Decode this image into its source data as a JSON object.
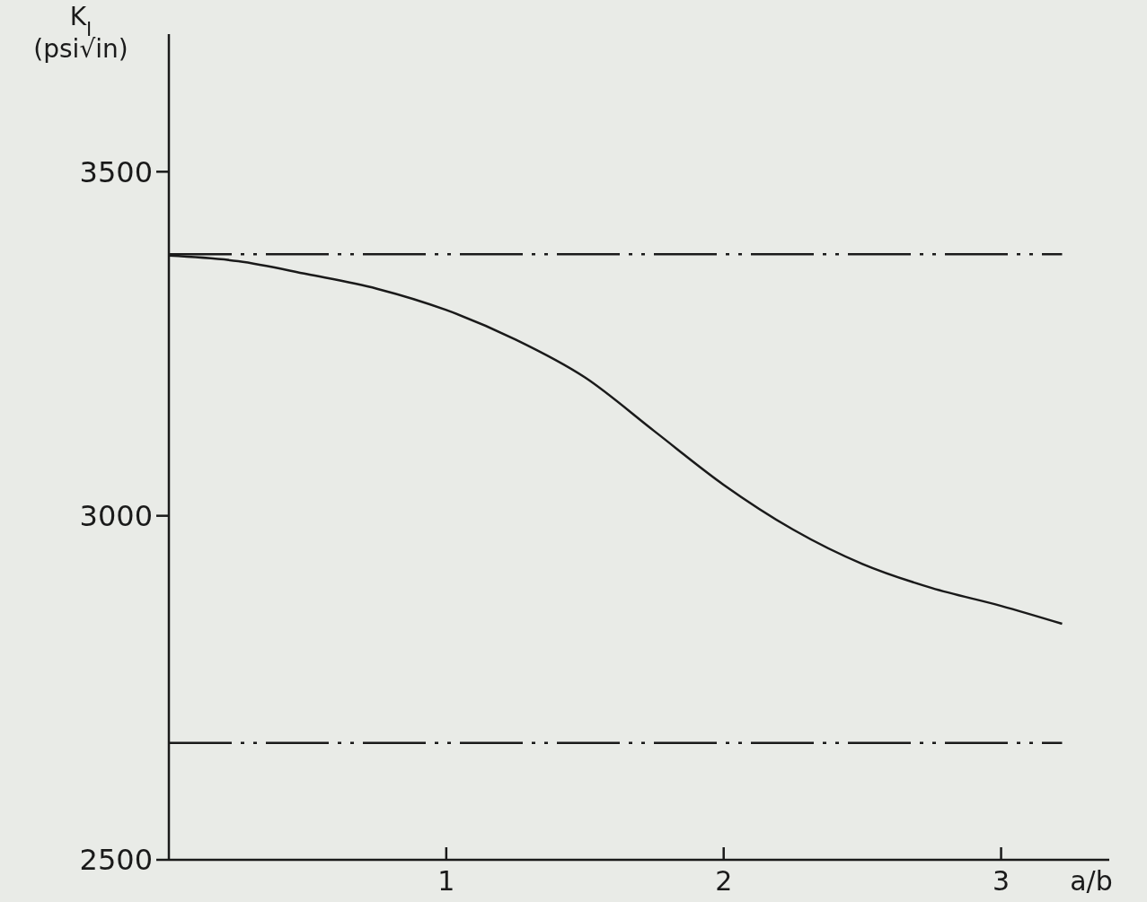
{
  "chart_data": {
    "type": "line",
    "xlabel": "a/b",
    "ylabel": "K$_{I}$ (psi√in)",
    "xlim": [
      0,
      3.39
    ],
    "xticks": [
      1,
      2,
      3
    ],
    "ylim": [
      2500,
      3700
    ],
    "yticks": [
      2500,
      3000,
      3500
    ],
    "marker": "none",
    "series": [
      {
        "color": "#1a1a1a",
        "line_style": "solid",
        "x": [
          0,
          0.25,
          0.5,
          0.75,
          1,
          1.25,
          1.5,
          1.75,
          2,
          2.25,
          2.5,
          2.75,
          3,
          3.22
        ],
        "values": [
          3378,
          3370,
          3351,
          3330,
          3299,
          3256,
          3201,
          3123,
          3045,
          2980,
          2930,
          2895,
          2869,
          2843
        ]
      },
      {
        "color": "#1a1a1a",
        "line_style": "dashed",
        "x": [
          0,
          3.22
        ],
        "values": [
          3380,
          3380
        ]
      },
      {
        "color": "#1a1a1a",
        "line_style": "dashed",
        "x": [
          0,
          3.22
        ],
        "values": [
          2670,
          2670
        ]
      }
    ]
  }
}
